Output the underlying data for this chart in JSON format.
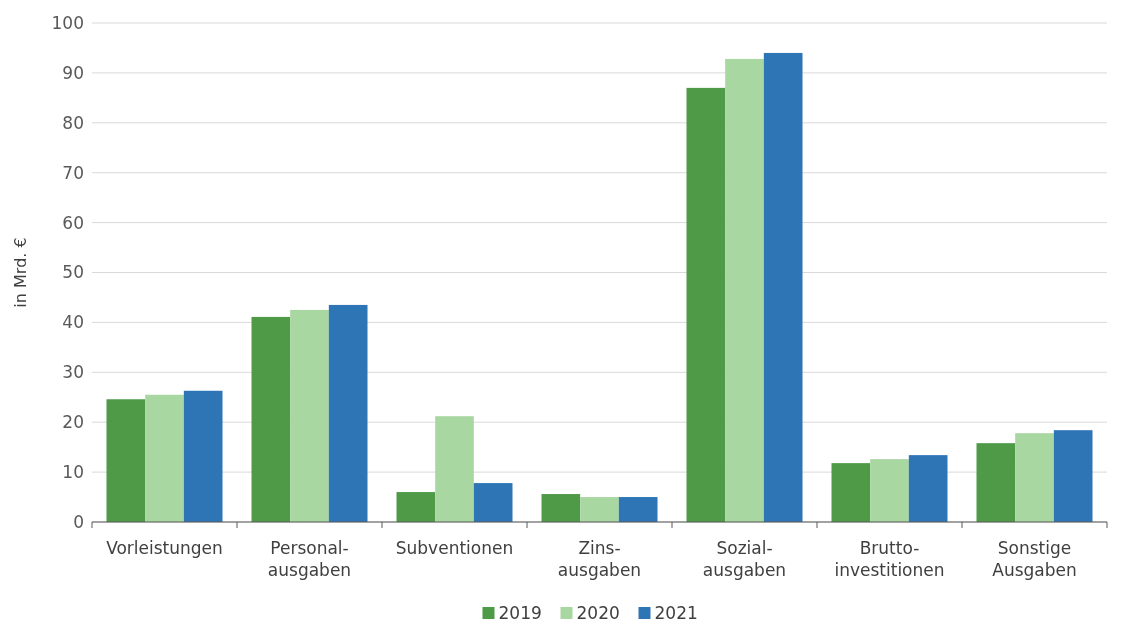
{
  "chart_data": {
    "type": "bar",
    "ylabel": "in Mrd. €",
    "categories": [
      "Vorleistungen",
      "Personal-\nausgaben",
      "Subventionen",
      "Zins-\nausgaben",
      "Sozial-\nausgaben",
      "Brutto-\ninvestitionen",
      "Sonstige\nAusgaben"
    ],
    "series": [
      {
        "name": "2019",
        "color": "#4e9a47",
        "values": [
          24.6,
          41.1,
          6.0,
          5.6,
          87.0,
          11.8,
          15.8
        ]
      },
      {
        "name": "2020",
        "color": "#a9d7a2",
        "values": [
          25.5,
          42.5,
          21.2,
          5.0,
          92.8,
          12.6,
          17.8
        ]
      },
      {
        "name": "2021",
        "color": "#2e75b6",
        "values": [
          26.3,
          43.5,
          7.8,
          5.0,
          94.0,
          13.4,
          18.4
        ]
      }
    ],
    "ylim": [
      0,
      100
    ],
    "yticks": [
      0,
      10,
      20,
      30,
      40,
      50,
      60,
      70,
      80,
      90,
      100
    ],
    "grid": "y",
    "legend": "bottom"
  }
}
